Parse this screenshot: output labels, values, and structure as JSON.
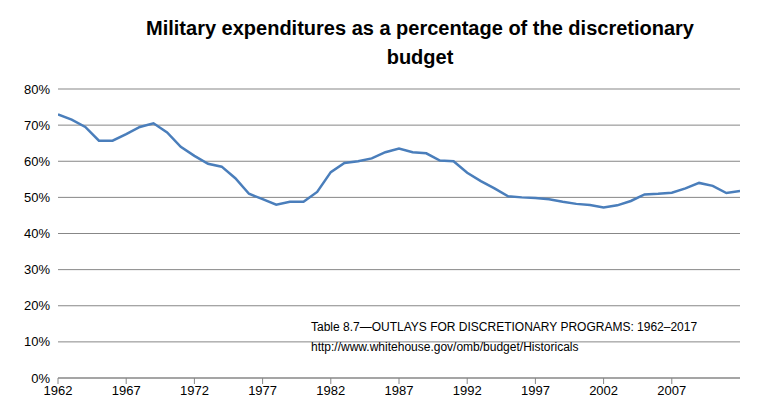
{
  "chart_data": {
    "type": "line",
    "title": "Military expenditures as a percentage of the discretionary budget",
    "annotations": [
      "Table 8.7—OUTLAYS FOR DISCRETIONARY PROGRAMS: 1962–2017",
      "http://www.whitehouse.gov/omb/budget/Historicals"
    ],
    "x": [
      1962,
      1963,
      1964,
      1965,
      1966,
      1967,
      1968,
      1969,
      1970,
      1971,
      1972,
      1973,
      1974,
      1975,
      1976,
      1977,
      1978,
      1979,
      1980,
      1981,
      1982,
      1983,
      1984,
      1985,
      1986,
      1987,
      1988,
      1989,
      1990,
      1991,
      1992,
      1993,
      1994,
      1995,
      1996,
      1997,
      1998,
      1999,
      2000,
      2001,
      2002,
      2003,
      2004,
      2005,
      2006,
      2007,
      2008,
      2009,
      2010,
      2011,
      2012
    ],
    "values": [
      73,
      71.5,
      69.5,
      65.7,
      65.7,
      67.5,
      69.5,
      70.5,
      68,
      64,
      61.5,
      59.3,
      58.5,
      55.3,
      51,
      49.5,
      48,
      48.8,
      48.8,
      51.5,
      57,
      59.5,
      60,
      60.8,
      62.5,
      63.5,
      62.5,
      62.2,
      60.2,
      60,
      56.8,
      54.5,
      52.5,
      50.3,
      50,
      49.8,
      49.5,
      48.8,
      48.2,
      47.9,
      47.2,
      47.8,
      49,
      50.8,
      51,
      51.3,
      52.5,
      54,
      53.2,
      51.2,
      51.8
    ],
    "color": "#4a7ebb",
    "xlim": [
      1962,
      2012
    ],
    "xticks": [
      1962,
      1967,
      1972,
      1977,
      1982,
      1987,
      1992,
      1997,
      2002,
      2007
    ],
    "ylim": [
      0,
      80
    ],
    "yticks": [
      {
        "value": 0,
        "label": "0%"
      },
      {
        "value": 10,
        "label": "10%"
      },
      {
        "value": 20,
        "label": "20%"
      },
      {
        "value": 30,
        "label": "30%"
      },
      {
        "value": 40,
        "label": "40%"
      },
      {
        "value": 50,
        "label": "50%"
      },
      {
        "value": 60,
        "label": "60%"
      },
      {
        "value": 70,
        "label": "70%"
      },
      {
        "value": 80,
        "label": "80%"
      }
    ],
    "grid": true
  }
}
